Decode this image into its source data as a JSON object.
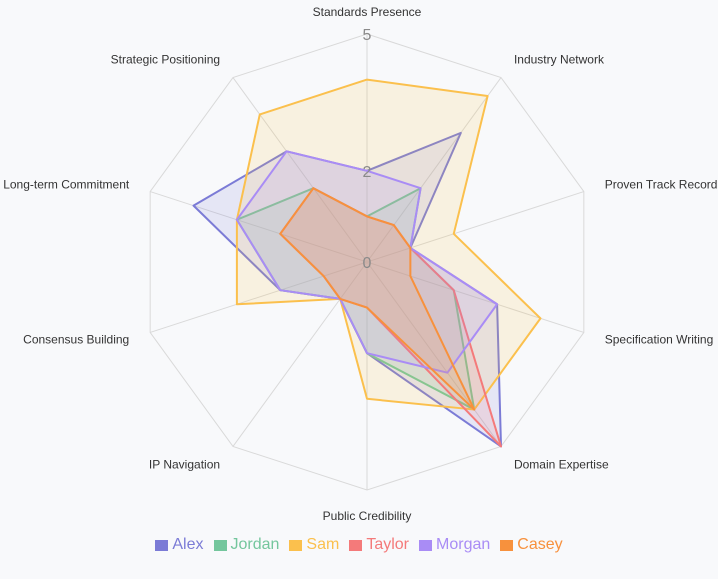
{
  "chart_data": {
    "type": "radar",
    "title": "",
    "axes": [
      "Standards Presence",
      "Industry Network",
      "Proven Track Record",
      "Specification Writing",
      "Domain Expertise",
      "Public Credibility",
      "IP Navigation",
      "Consensus Building",
      "Long-term Commitment",
      "Strategic Positioning"
    ],
    "rlim": [
      0,
      5
    ],
    "ticks": [
      "0",
      "2",
      "5"
    ],
    "tick_values": [
      0,
      2,
      5
    ],
    "grid": true,
    "legend_position": "bottom",
    "series": [
      {
        "name": "Alex",
        "color": "#7b7bd6",
        "values": [
          2,
          3.5,
          1,
          3,
          5,
          2,
          1,
          2,
          4,
          3
        ]
      },
      {
        "name": "Jordan",
        "color": "#74c69d",
        "values": [
          1,
          2,
          1,
          2,
          4,
          2,
          1,
          2,
          3,
          2
        ]
      },
      {
        "name": "Sam",
        "color": "#fbc04d",
        "values": [
          4,
          4.5,
          2,
          4,
          4,
          3,
          1,
          3,
          3,
          4
        ]
      },
      {
        "name": "Taylor",
        "color": "#f47a7a",
        "values": [
          1,
          1,
          1,
          2,
          5,
          1,
          1,
          1,
          2,
          2
        ]
      },
      {
        "name": "Morgan",
        "color": "#a98cf5",
        "values": [
          2,
          2,
          1,
          3,
          3,
          2,
          1,
          2,
          3,
          3
        ]
      },
      {
        "name": "Casey",
        "color": "#f7913d",
        "values": [
          1,
          1,
          1,
          1,
          4,
          1,
          1,
          1,
          2,
          2
        ]
      }
    ]
  }
}
